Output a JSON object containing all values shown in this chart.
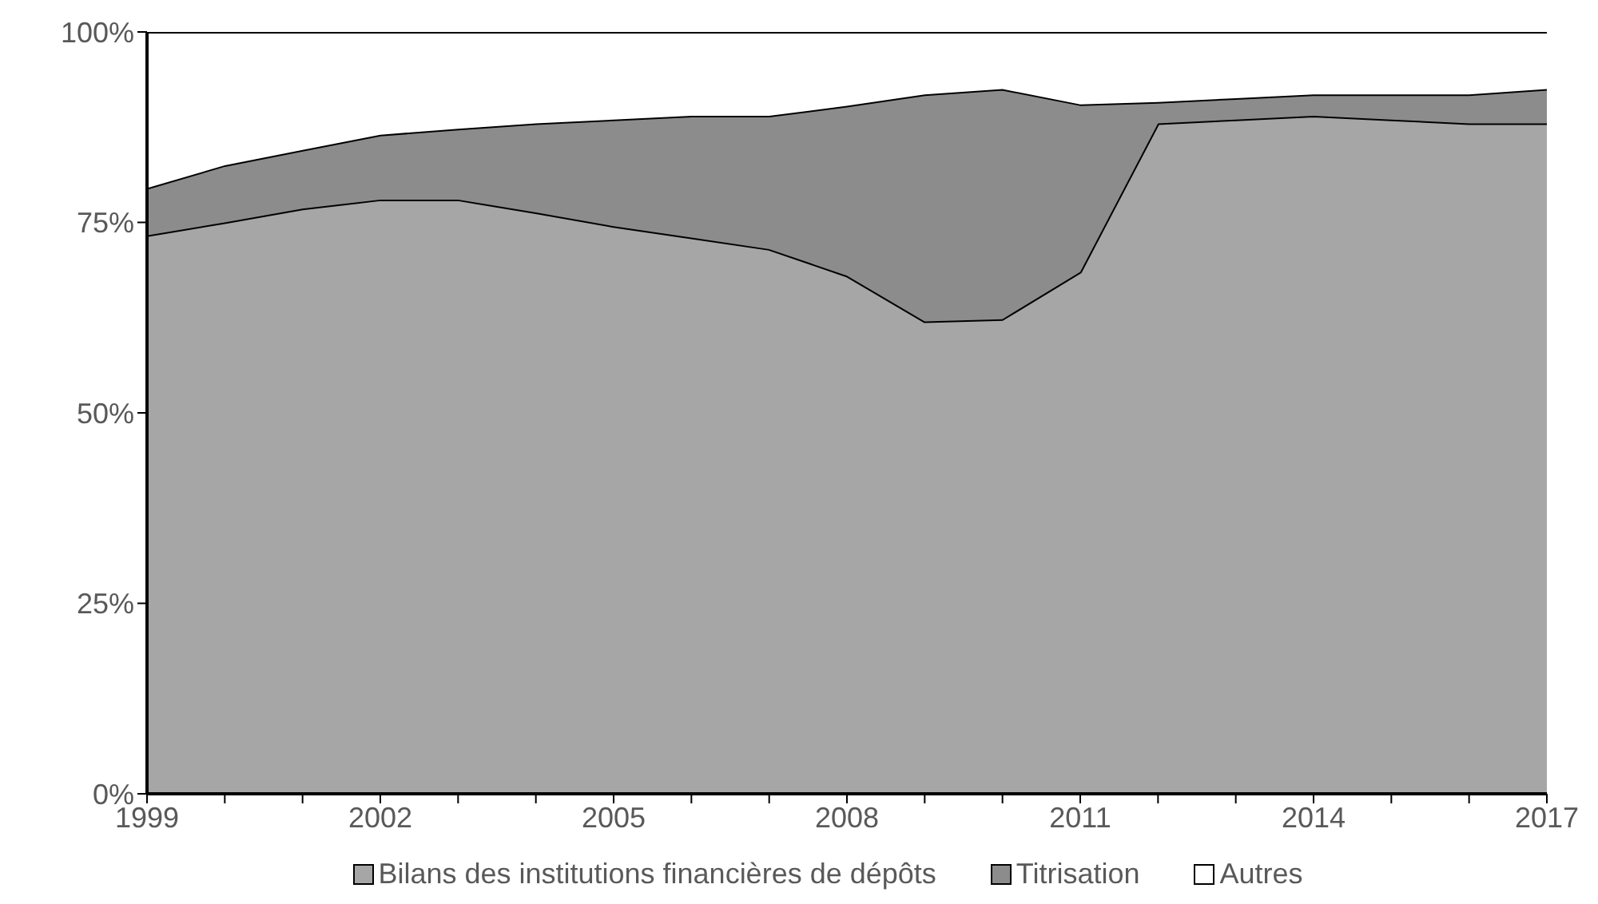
{
  "chart_data": {
    "type": "area",
    "stacked": true,
    "x": [
      1999,
      2000,
      2001,
      2002,
      2003,
      2004,
      2005,
      2006,
      2007,
      2008,
      2009,
      2010,
      2011,
      2012,
      2013,
      2014,
      2015,
      2016,
      2017
    ],
    "series": [
      {
        "name": "Bilans des institutions financières de dépôts",
        "color": "#a6a6a6",
        "values": [
          73.3,
          75,
          76.8,
          78,
          78,
          76.3,
          74.5,
          73,
          71.5,
          68,
          62,
          62.3,
          68.5,
          88,
          88.5,
          89,
          88.5,
          88,
          88
        ]
      },
      {
        "name": "Titrisation",
        "color": "#8c8c8c",
        "values": [
          6.2,
          7.5,
          7.7,
          8.5,
          9.3,
          11.7,
          14,
          16,
          17.5,
          22.3,
          29.8,
          30.2,
          22,
          2.8,
          2.8,
          2.8,
          3.3,
          3.8,
          4.5
        ]
      },
      {
        "name": "Autres",
        "color": "#ffffff",
        "values": [
          20.5,
          17.5,
          15.5,
          13.5,
          12.7,
          12,
          11.5,
          11,
          11,
          9.7,
          8.2,
          7.5,
          9.5,
          9.2,
          8.7,
          8.2,
          8.2,
          8.2,
          7.5
        ]
      }
    ],
    "xlim": [
      1999,
      2017
    ],
    "xticks": [
      1999,
      {
        "value": 2000,
        "label": null
      },
      {
        "value": 2001,
        "label": null
      },
      2002,
      {
        "value": 2003,
        "label": null
      },
      {
        "value": 2004,
        "label": null
      },
      2005,
      {
        "value": 2006,
        "label": null
      },
      {
        "value": 2007,
        "label": null
      },
      2008,
      {
        "value": 2009,
        "label": null
      },
      {
        "value": 2010,
        "label": null
      },
      2011,
      {
        "value": 2012,
        "label": null
      },
      {
        "value": 2013,
        "label": null
      },
      2014,
      {
        "value": 2015,
        "label": null
      },
      {
        "value": 2016,
        "label": null
      },
      2017
    ],
    "ylim": [
      0,
      100
    ],
    "yticks": [
      {
        "value": 0,
        "label": "0%"
      },
      {
        "value": 25,
        "label": "25%"
      },
      {
        "value": 50,
        "label": "50%"
      },
      {
        "value": 75,
        "label": "75%"
      },
      {
        "value": 100,
        "label": "100%"
      }
    ],
    "grid": false,
    "legend": "bottom",
    "line_style": "solid"
  }
}
